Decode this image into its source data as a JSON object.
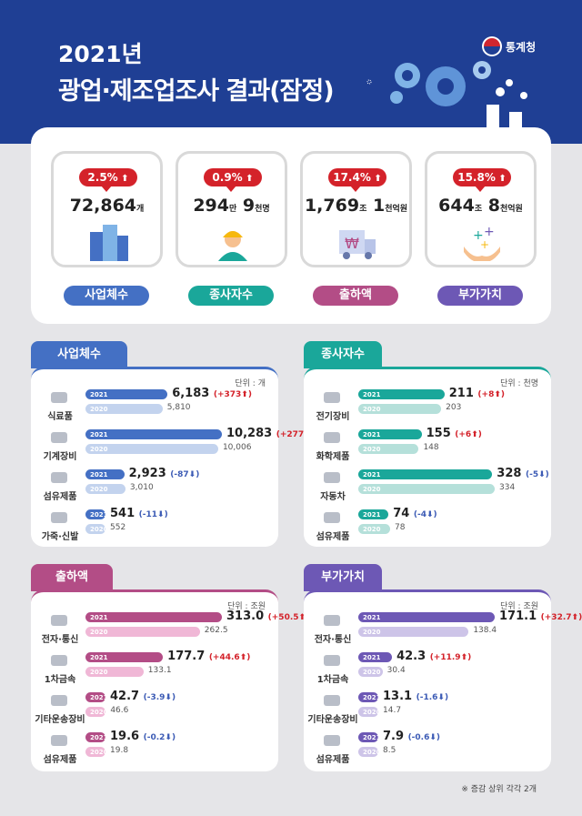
{
  "header": {
    "title_year": "2021년",
    "title_main": "광업·제조업조사 결과(잠정)",
    "logo_text": "통계청"
  },
  "summary": [
    {
      "change": "2.5%",
      "value": "72,864",
      "unit": "개",
      "label": "사업체수",
      "color": "#4470c4",
      "icon": "building-icon"
    },
    {
      "change": "0.9%",
      "value_a": "294",
      "unit_a": "만",
      "value_b": "9",
      "unit_b": "천명",
      "label": "종사자수",
      "color": "#1aa79a",
      "icon": "worker-icon"
    },
    {
      "change": "17.4%",
      "value_a": "1,769",
      "unit_a": "조",
      "value_b": "1",
      "unit_b": "천억원",
      "label": "출하액",
      "color": "#b34d86",
      "icon": "truck-won-icon"
    },
    {
      "change": "15.8%",
      "value_a": "644",
      "unit_a": "조",
      "value_b": "8",
      "unit_b": "천억원",
      "label": "부가가치",
      "color": "#6d58b5",
      "icon": "hands-plus-icon"
    }
  ],
  "chart_data": [
    {
      "type": "bar",
      "title": "사업체수",
      "unit_label": "단위 : 개",
      "orientation": "horizontal",
      "series_names": [
        "2021",
        "2020"
      ],
      "color_2021": "#4470c4",
      "color_2020": "#c3d3ee",
      "categories": [
        "식료품",
        "기계장비",
        "섬유제품",
        "가죽·신발"
      ],
      "v2021": [
        6183,
        10283,
        2923,
        541
      ],
      "v2020": [
        5810,
        10006,
        3010,
        552
      ],
      "v2021_text": [
        "6,183",
        "10,283",
        "2,923",
        "541"
      ],
      "v2020_text": [
        "5,810",
        "10,006",
        "3,010",
        "552"
      ],
      "change_text": [
        "(+373",
        "(+277",
        "(-87",
        "(-11"
      ],
      "direction": [
        "up",
        "up",
        "down",
        "down"
      ],
      "max": 10283
    },
    {
      "type": "bar",
      "title": "종사자수",
      "unit_label": "단위 : 천명",
      "orientation": "horizontal",
      "series_names": [
        "2021",
        "2020"
      ],
      "color_2021": "#1aa79a",
      "color_2020": "#b5e0da",
      "categories": [
        "전기장비",
        "화학제품",
        "자동차",
        "섬유제품"
      ],
      "v2021": [
        211,
        155,
        328,
        74
      ],
      "v2020": [
        203,
        148,
        334,
        78
      ],
      "v2021_text": [
        "211",
        "155",
        "328",
        "74"
      ],
      "v2020_text": [
        "203",
        "148",
        "334",
        "78"
      ],
      "change_text": [
        "(+8",
        "(+6",
        "(-5",
        "(-4"
      ],
      "direction": [
        "up",
        "up",
        "down",
        "down"
      ],
      "max": 334
    },
    {
      "type": "bar",
      "title": "출하액",
      "unit_label": "단위 : 조원",
      "orientation": "horizontal",
      "series_names": [
        "2021",
        "2020"
      ],
      "color_2021": "#b34d86",
      "color_2020": "#f0b7d6",
      "categories": [
        "전자·통신",
        "1차금속",
        "기타운송장비",
        "섬유제품"
      ],
      "v2021": [
        313.0,
        177.7,
        42.7,
        19.6
      ],
      "v2020": [
        262.5,
        133.1,
        46.6,
        19.8
      ],
      "v2021_text": [
        "313.0",
        "177.7",
        "42.7",
        "19.6"
      ],
      "v2020_text": [
        "262.5",
        "133.1",
        "46.6",
        "19.8"
      ],
      "change_text": [
        "(+50.5",
        "(+44.6",
        "(-3.9",
        "(-0.2"
      ],
      "direction": [
        "up",
        "up",
        "down",
        "down"
      ],
      "max": 313.0
    },
    {
      "type": "bar",
      "title": "부가가치",
      "unit_label": "단위 : 조원",
      "orientation": "horizontal",
      "series_names": [
        "2021",
        "2020"
      ],
      "color_2021": "#6d58b5",
      "color_2020": "#cdc4e8",
      "categories": [
        "전자·통신",
        "1차금속",
        "기타운송장비",
        "섬유제품"
      ],
      "v2021": [
        171.1,
        42.3,
        13.1,
        7.9
      ],
      "v2020": [
        138.4,
        30.4,
        14.7,
        8.5
      ],
      "v2021_text": [
        "171.1",
        "42.3",
        "13.1",
        "7.9"
      ],
      "v2020_text": [
        "138.4",
        "30.4",
        "14.7",
        "8.5"
      ],
      "change_text": [
        "(+32.7",
        "(+11.9",
        "(-1.6",
        "(-0.6"
      ],
      "direction": [
        "up",
        "up",
        "down",
        "down"
      ],
      "max": 171.1
    }
  ],
  "footnote": "※ 증감 상위 각각 2개"
}
